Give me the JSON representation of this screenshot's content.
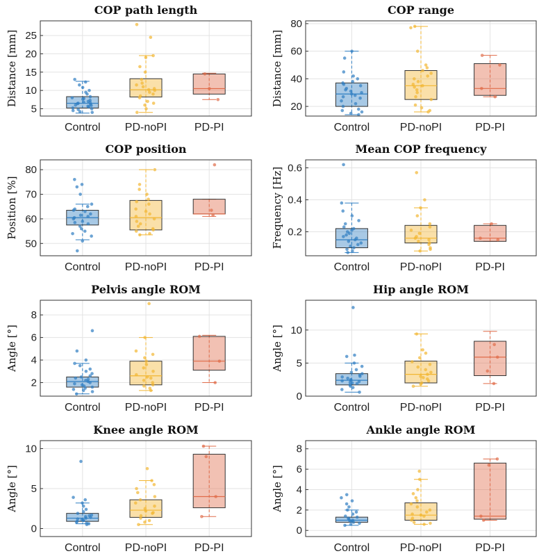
{
  "colors": {
    "Control": "#2f7ec2",
    "PD-noPI": "#f2b632",
    "PD-PI": "#e06c4a"
  },
  "chart_data": [
    {
      "type": "box",
      "title": "COP path length",
      "ylabel": "Distance [mm]",
      "categories": [
        "Control",
        "PD-noPI",
        "PD-PI"
      ],
      "ylim": [
        3,
        29
      ],
      "yticks": [
        5,
        10,
        15,
        20,
        25
      ],
      "boxes": [
        {
          "q1": 5.2,
          "median": 6.5,
          "q3": 8.3,
          "lo": 3.8,
          "hi": 12.5
        },
        {
          "q1": 8.2,
          "median": 10.2,
          "q3": 13.2,
          "lo": 4.0,
          "hi": 19.5
        },
        {
          "q1": 9.0,
          "median": 10.5,
          "q3": 14.5,
          "lo": 7.5,
          "hi": 14.7
        }
      ],
      "points": [
        [
          4.0,
          4.5,
          4.8,
          5.0,
          5.2,
          5.5,
          5.7,
          6.0,
          6.2,
          6.4,
          6.5,
          6.7,
          7.0,
          7.3,
          7.6,
          8.0,
          8.3,
          9.0,
          9.5,
          10.0,
          10.8,
          11.5,
          12.3,
          13.0,
          4.2,
          5.9,
          6.8,
          7.8
        ],
        [
          4.0,
          5.0,
          6.0,
          7.0,
          8.0,
          8.5,
          9.0,
          9.5,
          10.0,
          10.2,
          10.5,
          11.0,
          11.5,
          12.0,
          13.0,
          15.0,
          16.5,
          19.0,
          19.5,
          24.5,
          28.0,
          6.5
        ],
        [
          7.5,
          10.5,
          14.5
        ]
      ]
    },
    {
      "type": "box",
      "title": "COP range",
      "ylabel": "Distance [mm]",
      "categories": [
        "Control",
        "PD-noPI",
        "PD-PI"
      ],
      "ylim": [
        13,
        82
      ],
      "yticks": [
        20,
        40,
        60,
        80
      ],
      "boxes": [
        {
          "q1": 20,
          "median": 29,
          "q3": 37,
          "lo": 14,
          "hi": 60
        },
        {
          "q1": 25,
          "median": 35,
          "q3": 46,
          "lo": 16,
          "hi": 78
        },
        {
          "q1": 28,
          "median": 33,
          "q3": 51,
          "lo": 27,
          "hi": 57
        }
      ],
      "points": [
        [
          14,
          15,
          16,
          17,
          18,
          20,
          22,
          24,
          26,
          27,
          28,
          29,
          30,
          31,
          32,
          33,
          35,
          36,
          37,
          38,
          40,
          42,
          45,
          55,
          60
        ],
        [
          16,
          17,
          19,
          21,
          25,
          27,
          30,
          32,
          34,
          35,
          36,
          38,
          40,
          42,
          44,
          46,
          48,
          50,
          60,
          77,
          78
        ],
        [
          27,
          33,
          50,
          57
        ]
      ]
    },
    {
      "type": "box",
      "title": "COP position",
      "ylabel": "Position [%]",
      "categories": [
        "Control",
        "PD-noPI",
        "PD-PI"
      ],
      "ylim": [
        45,
        84
      ],
      "yticks": [
        50,
        60,
        70,
        80
      ],
      "boxes": [
        {
          "q1": 57.5,
          "median": 60.5,
          "q3": 63.5,
          "lo": 51.5,
          "hi": 66
        },
        {
          "q1": 55.5,
          "median": 60.5,
          "q3": 67.5,
          "lo": 53.5,
          "hi": 80
        },
        {
          "q1": 62,
          "median": 62,
          "q3": 68,
          "lo": 61,
          "hi": 68
        }
      ],
      "points": [
        [
          47,
          51,
          53,
          54,
          55,
          56,
          57,
          58,
          59,
          60,
          60.5,
          61,
          62,
          63,
          63.5,
          64,
          65,
          66,
          70,
          73,
          74,
          76,
          58.5,
          61.5
        ],
        [
          53.5,
          54,
          55,
          56,
          57,
          58,
          59,
          60,
          61,
          62,
          63,
          64,
          66,
          67,
          68,
          70,
          72,
          74,
          80,
          55.5
        ],
        [
          61.5,
          63.5,
          82
        ]
      ]
    },
    {
      "type": "box",
      "title": "Mean COP frequency",
      "ylabel": "Frequency [Hz]",
      "categories": [
        "Control",
        "PD-noPI",
        "PD-PI"
      ],
      "ylim": [
        0.05,
        0.65
      ],
      "yticks": [
        0.2,
        0.4,
        0.6
      ],
      "ytick_labels": [
        "0.2",
        "0.4",
        "0.6"
      ],
      "boxes": [
        {
          "q1": 0.1,
          "median": 0.15,
          "q3": 0.22,
          "lo": 0.07,
          "hi": 0.38
        },
        {
          "q1": 0.13,
          "median": 0.16,
          "q3": 0.24,
          "lo": 0.08,
          "hi": 0.35
        },
        {
          "q1": 0.14,
          "median": 0.16,
          "q3": 0.24,
          "lo": 0.14,
          "hi": 0.25
        }
      ],
      "points": [
        [
          0.07,
          0.08,
          0.09,
          0.1,
          0.11,
          0.12,
          0.13,
          0.14,
          0.15,
          0.16,
          0.17,
          0.18,
          0.19,
          0.2,
          0.21,
          0.22,
          0.23,
          0.25,
          0.27,
          0.3,
          0.33,
          0.38,
          0.62
        ],
        [
          0.08,
          0.09,
          0.1,
          0.12,
          0.13,
          0.14,
          0.15,
          0.16,
          0.17,
          0.19,
          0.21,
          0.23,
          0.25,
          0.3,
          0.35,
          0.4,
          0.57
        ],
        [
          0.15,
          0.16,
          0.25
        ]
      ]
    },
    {
      "type": "box",
      "title": "Pelvis angle ROM",
      "ylabel": "Angle [°]",
      "categories": [
        "Control",
        "PD-noPI",
        "PD-PI"
      ],
      "ylim": [
        0.8,
        9.3
      ],
      "yticks": [
        2,
        4,
        6,
        8
      ],
      "boxes": [
        {
          "q1": 1.6,
          "median": 2.1,
          "q3": 2.5,
          "lo": 1.0,
          "hi": 3.7
        },
        {
          "q1": 1.8,
          "median": 2.6,
          "q3": 3.9,
          "lo": 1.3,
          "hi": 6.0
        },
        {
          "q1": 3.1,
          "median": 3.9,
          "q3": 6.1,
          "lo": 2.0,
          "hi": 6.2
        }
      ],
      "points": [
        [
          1.0,
          1.2,
          1.3,
          1.5,
          1.6,
          1.7,
          1.8,
          1.9,
          2.0,
          2.1,
          2.2,
          2.3,
          2.4,
          2.5,
          2.6,
          2.8,
          3.0,
          3.2,
          3.5,
          3.7,
          4.0,
          4.8,
          6.6,
          1.4
        ],
        [
          1.3,
          1.5,
          1.7,
          1.8,
          2.0,
          2.2,
          2.5,
          2.7,
          3.0,
          3.3,
          3.6,
          3.9,
          4.2,
          4.5,
          4.8,
          6.0,
          9.0,
          2.4
        ],
        [
          2.0,
          3.9,
          6.1
        ]
      ]
    },
    {
      "type": "box",
      "title": "Hip angle ROM",
      "ylabel": "Angle [°]",
      "categories": [
        "Control",
        "PD-noPI",
        "PD-PI"
      ],
      "ylim": [
        0,
        14.5
      ],
      "yticks": [
        0,
        5,
        10
      ],
      "boxes": [
        {
          "q1": 1.7,
          "median": 2.4,
          "q3": 3.4,
          "lo": 0.6,
          "hi": 5.0
        },
        {
          "q1": 2.0,
          "median": 3.3,
          "q3": 5.3,
          "lo": 1.5,
          "hi": 9.4
        },
        {
          "q1": 3.1,
          "median": 5.9,
          "q3": 8.3,
          "lo": 1.9,
          "hi": 9.8
        }
      ],
      "points": [
        [
          0.6,
          1.0,
          1.3,
          1.5,
          1.7,
          1.9,
          2.0,
          2.2,
          2.3,
          2.4,
          2.5,
          2.7,
          2.9,
          3.0,
          3.2,
          3.4,
          3.6,
          4.0,
          4.5,
          5.0,
          6.0,
          6.2,
          13.4,
          2.1
        ],
        [
          1.5,
          1.8,
          2.0,
          2.3,
          2.6,
          3.0,
          3.3,
          3.6,
          4.0,
          4.4,
          4.8,
          5.2,
          5.8,
          6.5,
          7.0,
          9.4,
          2.8
        ],
        [
          1.9,
          3.8,
          5.9,
          7.8
        ]
      ]
    },
    {
      "type": "box",
      "title": "Knee angle ROM",
      "ylabel": "Angle [°]",
      "categories": [
        "Control",
        "PD-noPI",
        "PD-PI"
      ],
      "ylim": [
        -1,
        11
      ],
      "yticks": [
        0,
        5,
        10
      ],
      "boxes": [
        {
          "q1": 0.9,
          "median": 1.3,
          "q3": 1.9,
          "lo": 0.6,
          "hi": 3.2
        },
        {
          "q1": 1.4,
          "median": 2.3,
          "q3": 3.6,
          "lo": 0.5,
          "hi": 6.0
        },
        {
          "q1": 2.6,
          "median": 4.0,
          "q3": 9.3,
          "lo": 1.5,
          "hi": 10.3
        }
      ],
      "points": [
        [
          0.5,
          0.6,
          0.7,
          0.8,
          0.9,
          1.0,
          1.1,
          1.2,
          1.3,
          1.4,
          1.5,
          1.6,
          1.7,
          1.9,
          2.1,
          2.4,
          2.8,
          3.2,
          3.6,
          3.9,
          8.4,
          1.0
        ],
        [
          0.5,
          0.8,
          1.0,
          1.3,
          1.6,
          1.9,
          2.2,
          2.5,
          2.8,
          3.2,
          3.6,
          4.0,
          4.5,
          5.0,
          5.5,
          6.0,
          7.5,
          2.0
        ],
        [
          1.5,
          4.0,
          9.0,
          10.3
        ]
      ]
    },
    {
      "type": "box",
      "title": "Ankle angle ROM",
      "ylabel": "Angle [°]",
      "categories": [
        "Control",
        "PD-noPI",
        "PD-PI"
      ],
      "ylim": [
        -0.6,
        8.8
      ],
      "yticks": [
        0,
        2,
        4,
        6,
        8
      ],
      "boxes": [
        {
          "q1": 0.8,
          "median": 1.0,
          "q3": 1.3,
          "lo": 0.5,
          "hi": 2.0
        },
        {
          "q1": 1.0,
          "median": 1.5,
          "q3": 2.7,
          "lo": 0.6,
          "hi": 5.0
        },
        {
          "q1": 1.1,
          "median": 1.4,
          "q3": 6.6,
          "lo": 1.0,
          "hi": 7.0
        }
      ],
      "points": [
        [
          0.5,
          0.6,
          0.7,
          0.8,
          0.9,
          1.0,
          1.1,
          1.2,
          1.3,
          1.4,
          1.6,
          1.8,
          2.0,
          2.3,
          2.6,
          2.9,
          3.2,
          3.5,
          0.95
        ],
        [
          0.6,
          0.7,
          0.8,
          1.0,
          1.2,
          1.4,
          1.6,
          1.8,
          2.0,
          2.3,
          2.6,
          2.9,
          3.2,
          3.6,
          4.0,
          5.0,
          5.8,
          1.5
        ],
        [
          1.0,
          1.4,
          6.4,
          7.0
        ]
      ]
    }
  ]
}
